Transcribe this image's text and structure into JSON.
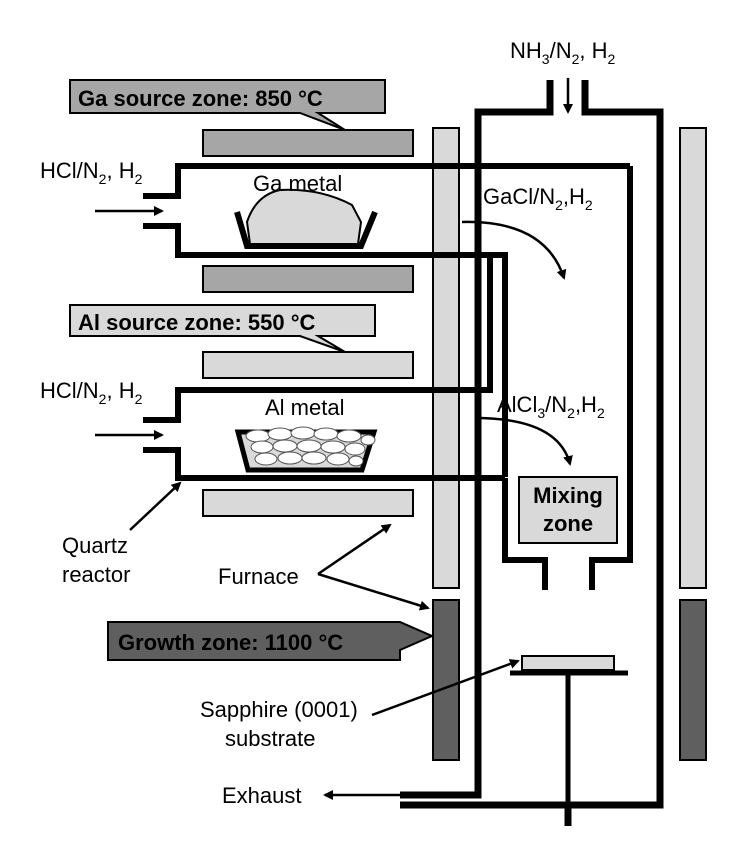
{
  "inlets": {
    "top": {
      "a": "NH",
      "b": "3",
      "c": "/N",
      "d": "2",
      "e": ", H",
      "f": "2"
    },
    "ga": {
      "a": "HCl/N",
      "b": "2",
      "c": ", H",
      "d": "2"
    },
    "al": {
      "a": "HCl/N",
      "b": "2",
      "c": ", H",
      "d": "2"
    }
  },
  "zones": {
    "ga_source": "Ga source zone: 850 °C",
    "al_source": "Al source zone: 550 °C",
    "growth": "Growth zone: 1100 °C",
    "mixing_1": "Mixing",
    "mixing_2": "zone"
  },
  "metals": {
    "ga": "Ga metal",
    "al": "Al metal"
  },
  "flows": {
    "gacl": {
      "a": "GaCl/N",
      "b": "2",
      "c": ",H",
      "d": "2"
    },
    "alcl": {
      "a": "AlCl",
      "b": "3",
      "c": "/N",
      "d": "2",
      "e": ",H",
      "f": "2"
    }
  },
  "labels": {
    "quartz_1": "Quartz",
    "quartz_2": "reactor",
    "furnace": "Furnace",
    "sapphire_1": "Sapphire (0001)",
    "sapphire_2": "substrate",
    "exhaust": "Exhaust"
  },
  "colors": {
    "light": "#d9d9d9",
    "mid": "#a6a6a6",
    "dark": "#5f5f5f"
  }
}
